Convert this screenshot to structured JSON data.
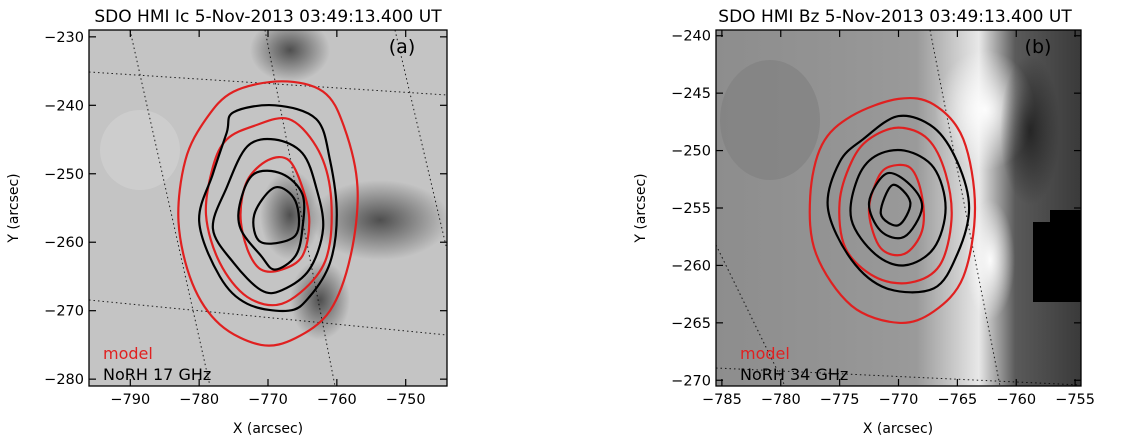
{
  "chart_data": [
    {
      "type": "contour",
      "title": "SDO HMI Ic 5-Nov-2013 03:49:13.400 UT",
      "panel_label": "(a)",
      "xlabel": "X (arcsec)",
      "ylabel": "Y (arcsec)",
      "xlim": [
        -796,
        -744
      ],
      "ylim": [
        -281,
        -229
      ],
      "xticks": [
        -790,
        -780,
        -770,
        -760,
        -750
      ],
      "yticks": [
        -230,
        -240,
        -250,
        -260,
        -270,
        -280
      ],
      "background": "HMI continuum intensity (grayscale)",
      "contour_colors": {
        "model": "#e02020",
        "observed": "#000000"
      },
      "legend": [
        {
          "label": "model",
          "color": "#e02020"
        },
        {
          "label": "NoRH 17 GHz",
          "color": "#000000"
        }
      ],
      "grid": "dotted heliographic grid",
      "series": [
        {
          "name": "model",
          "contours": [
            [
              [
                -775,
                -238
              ],
              [
                -768,
                -236.5
              ],
              [
                -762,
                -238
              ],
              [
                -759,
                -243
              ],
              [
                -757,
                -252
              ],
              [
                -758,
                -262
              ],
              [
                -761,
                -270
              ],
              [
                -766,
                -274
              ],
              [
                -771,
                -275
              ],
              [
                -777,
                -272
              ],
              [
                -781,
                -266
              ],
              [
                -783,
                -257
              ],
              [
                -782,
                -248
              ],
              [
                -779,
                -242
              ]
            ],
            [
              [
                -772,
                -243
              ],
              [
                -767,
                -242
              ],
              [
                -763,
                -246
              ],
              [
                -761,
                -252
              ],
              [
                -761,
                -260
              ],
              [
                -763,
                -265
              ],
              [
                -768,
                -269
              ],
              [
                -773,
                -268
              ],
              [
                -777,
                -263
              ],
              [
                -779,
                -256
              ],
              [
                -778,
                -249
              ],
              [
                -776,
                -245
              ]
            ],
            [
              [
                -770,
                -248
              ],
              [
                -767,
                -248
              ],
              [
                -765,
                -252
              ],
              [
                -764,
                -257
              ],
              [
                -765,
                -262
              ],
              [
                -768,
                -264
              ],
              [
                -771,
                -264
              ],
              [
                -773,
                -261
              ],
              [
                -774,
                -256
              ],
              [
                -773,
                -251
              ]
            ]
          ]
        },
        {
          "name": "NoRH 17 GHz",
          "contours": [
            [
              [
                -775,
                -241
              ],
              [
                -769,
                -240
              ],
              [
                -763,
                -242
              ],
              [
                -761,
                -248
              ],
              [
                -760,
                -256
              ],
              [
                -761,
                -263
              ],
              [
                -764,
                -268
              ],
              [
                -767,
                -270
              ],
              [
                -773,
                -269
              ],
              [
                -777,
                -265
              ],
              [
                -780,
                -257
              ],
              [
                -778,
                -250
              ],
              [
                -776,
                -244
              ]
            ],
            [
              [
                -773,
                -246
              ],
              [
                -769,
                -245
              ],
              [
                -765,
                -247
              ],
              [
                -763,
                -252
              ],
              [
                -762,
                -258
              ],
              [
                -764,
                -264
              ],
              [
                -768,
                -267
              ],
              [
                -771,
                -267
              ],
              [
                -775,
                -263
              ],
              [
                -778,
                -258
              ],
              [
                -776,
                -252
              ]
            ],
            [
              [
                -772,
                -250
              ],
              [
                -768,
                -250
              ],
              [
                -765,
                -253
              ],
              [
                -765,
                -258
              ],
              [
                -766,
                -262
              ],
              [
                -769,
                -264
              ],
              [
                -771,
                -262
              ],
              [
                -774,
                -258
              ],
              [
                -774,
                -254
              ]
            ],
            [
              [
                -769,
                -252
              ],
              [
                -766,
                -254
              ],
              [
                -766,
                -259
              ],
              [
                -771,
                -260
              ],
              [
                -772,
                -256
              ]
            ]
          ]
        }
      ]
    },
    {
      "type": "contour",
      "title": "SDO HMI Bz 5-Nov-2013 03:49:13.400 UT",
      "panel_label": "(b)",
      "xlabel": "X (arcsec)",
      "ylabel": "Y (arcsec)",
      "xlim": [
        -785.5,
        -754.5
      ],
      "ylim": [
        -270.5,
        -239.5
      ],
      "xticks": [
        -785,
        -780,
        -775,
        -770,
        -765,
        -760,
        -755
      ],
      "yticks": [
        -240,
        -245,
        -250,
        -255,
        -260,
        -265,
        -270
      ],
      "background": "HMI line-of-sight magnetogram Bz (grayscale)",
      "contour_colors": {
        "model": "#e02020",
        "observed": "#000000"
      },
      "legend": [
        {
          "label": "model",
          "color": "#e02020"
        },
        {
          "label": "NoRH 34 GHz",
          "color": "#000000"
        }
      ],
      "grid": "dotted heliographic grid",
      "series": [
        {
          "name": "model",
          "contours": [
            [
              [
                -774,
                -247
              ],
              [
                -770,
                -245.5
              ],
              [
                -767,
                -246
              ],
              [
                -764.5,
                -249
              ],
              [
                -763.5,
                -255
              ],
              [
                -764.5,
                -261
              ],
              [
                -767,
                -264
              ],
              [
                -770,
                -265
              ],
              [
                -774,
                -263.5
              ],
              [
                -777,
                -259
              ],
              [
                -777.5,
                -254
              ],
              [
                -776.5,
                -249.5
              ]
            ],
            [
              [
                -772.5,
                -249
              ],
              [
                -770,
                -248
              ],
              [
                -767.5,
                -249
              ],
              [
                -766,
                -252
              ],
              [
                -765.5,
                -256
              ],
              [
                -766.5,
                -260
              ],
              [
                -769,
                -261.5
              ],
              [
                -772,
                -261
              ],
              [
                -774.5,
                -258.5
              ],
              [
                -775,
                -254.5
              ],
              [
                -774,
                -251
              ]
            ],
            [
              [
                -771,
                -251.5
              ],
              [
                -769,
                -251.5
              ],
              [
                -768,
                -254
              ],
              [
                -768,
                -257
              ],
              [
                -769.5,
                -259
              ],
              [
                -771.5,
                -258.5
              ],
              [
                -772.5,
                -255.5
              ],
              [
                -772,
                -253
              ]
            ]
          ]
        },
        {
          "name": "NoRH 34 GHz",
          "contours": [
            [
              [
                -773,
                -249
              ],
              [
                -770,
                -247
              ],
              [
                -767,
                -248
              ],
              [
                -765,
                -251
              ],
              [
                -764,
                -255
              ],
              [
                -765,
                -259
              ],
              [
                -767,
                -262
              ],
              [
                -771,
                -262
              ],
              [
                -774,
                -259.5
              ],
              [
                -776,
                -255
              ],
              [
                -775,
                -251
              ]
            ],
            [
              [
                -772,
                -250.5
              ],
              [
                -769.5,
                -250
              ],
              [
                -767,
                -251.5
              ],
              [
                -766,
                -255
              ],
              [
                -767,
                -258.5
              ],
              [
                -769.5,
                -260
              ],
              [
                -772,
                -259
              ],
              [
                -774,
                -256
              ],
              [
                -773.5,
                -252.5
              ]
            ],
            [
              [
                -771,
                -252
              ],
              [
                -769,
                -253
              ],
              [
                -768,
                -255
              ],
              [
                -769.5,
                -257.5
              ],
              [
                -771.5,
                -257
              ],
              [
                -772.5,
                -254.5
              ]
            ],
            [
              [
                -770.5,
                -253
              ],
              [
                -769,
                -254.5
              ],
              [
                -770,
                -256.5
              ],
              [
                -771.5,
                -255.5
              ]
            ]
          ]
        }
      ]
    }
  ]
}
